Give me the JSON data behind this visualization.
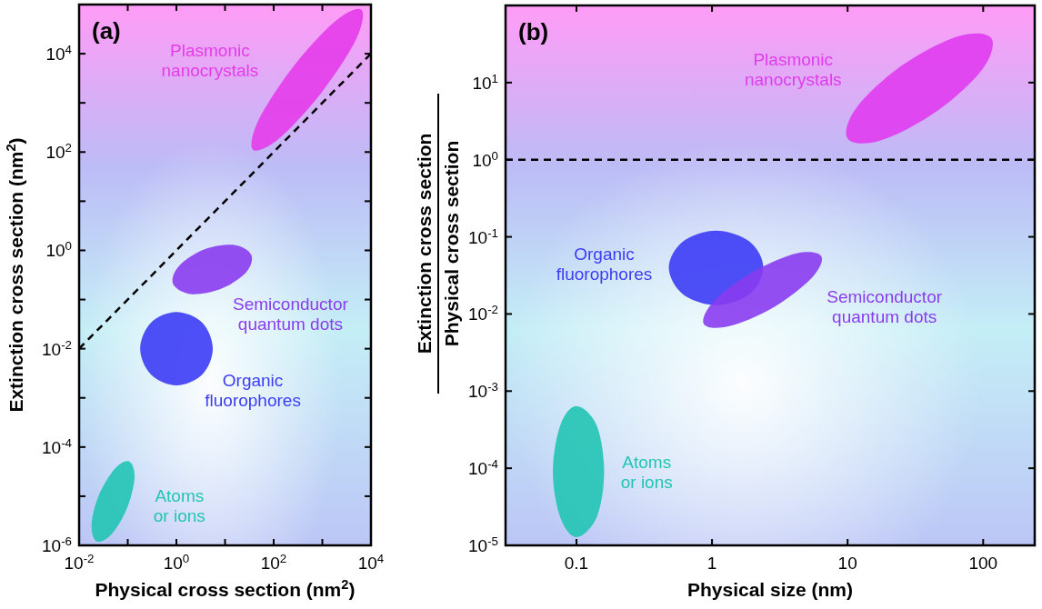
{
  "chart_data": [
    {
      "type": "line",
      "title": "(a)",
      "xlabel": "Physical cross section (nm$^{2}$)",
      "ylabel": "Extinction cross section (nm$^{2}$)",
      "log": "xy",
      "grid": false,
      "xlim": [
        0.01,
        10000
      ],
      "ylim": [
        1e-06,
        100000
      ],
      "xticks": [
        {
          "value": 0.01,
          "label": "10$^{-2}$"
        },
        {
          "value": 0.1,
          "label": null
        },
        {
          "value": 1,
          "label": "10$^{0}$"
        },
        {
          "value": 10,
          "label": null
        },
        {
          "value": 100,
          "label": "10$^{2}$"
        },
        {
          "value": 1000,
          "label": null
        },
        {
          "value": 10000,
          "label": "10$^{4}$"
        }
      ],
      "yticks": [
        {
          "value": 1e-06,
          "label": "10$^{-6}$"
        },
        {
          "value": 1e-05,
          "label": null
        },
        {
          "value": 0.0001,
          "label": "10$^{-4}$"
        },
        {
          "value": 0.001,
          "label": null
        },
        {
          "value": 0.01,
          "label": "10$^{-2}$"
        },
        {
          "value": 0.1,
          "label": null
        },
        {
          "value": 1,
          "label": "10$^{0}$"
        },
        {
          "value": 10,
          "label": null
        },
        {
          "value": 100,
          "label": "10$^{2}$"
        },
        {
          "value": 1000,
          "label": null
        },
        {
          "value": 10000,
          "label": "10$^{4}$"
        }
      ],
      "series": [
        {
          "type": "area",
          "name": "Plasmonic\nnanocrystals",
          "color": "#e43ceb",
          "x": [
            6300,
            5000,
            1000,
            135,
            38,
            48,
            240,
            1800
          ],
          "values": [
            79000,
            20000,
            1700,
            195,
            110,
            430,
            5100,
            45000
          ]
        },
        {
          "type": "area",
          "name": "Semiconductor\nquantum dots",
          "color": "#8a3cf0",
          "x": [
            35,
            26,
            7.6,
            1.9,
            0.85,
            1.15,
            3.8,
            16
          ],
          "values": [
            0.79,
            0.34,
            0.16,
            0.13,
            0.21,
            0.49,
            1.05,
            1.28
          ]
        },
        {
          "type": "area",
          "name": "Organic\nfluorophores",
          "color": "#3c3cf5",
          "x": [
            5.6,
            3.4,
            1,
            0.3,
            0.18,
            0.3,
            1,
            3.4
          ],
          "values": [
            0.01,
            0.034,
            0.056,
            0.034,
            0.01,
            0.003,
            0.0018,
            0.003
          ]
        },
        {
          "type": "area",
          "name": "Atoms\nor ions",
          "color": "#22c4b4",
          "x": [
            0.107,
            0.138,
            0.098,
            0.047,
            0.023,
            0.018,
            0.025,
            0.054
          ],
          "values": [
            5.1e-05,
            2.4e-05,
            5.9e-06,
            1.7e-06,
            1.2e-06,
            2.6e-06,
            1e-05,
            3.6e-05
          ]
        },
        {
          "type": "line",
          "color": "#000000",
          "line_style": "dashed",
          "x": [
            0.01,
            10000
          ],
          "values": [
            0.01,
            10000
          ]
        }
      ]
    },
    {
      "type": "line",
      "title": "(b)",
      "xlabel": "Physical size (nm)",
      "ylabel": "Extinction cross section\nPhysical cross section",
      "log": "xy",
      "grid": false,
      "xlim": [
        0.03,
        240
      ],
      "ylim": [
        1e-05,
        100
      ],
      "xticks": [
        0.1,
        1,
        10,
        100
      ],
      "yticks": [
        {
          "value": 1e-05,
          "label": "10$^{-5}$"
        },
        {
          "value": 0.0001,
          "label": "10$^{-4}$"
        },
        {
          "value": 0.001,
          "label": "10$^{-3}$"
        },
        {
          "value": 0.01,
          "label": "10$^{-2}$"
        },
        {
          "value": 0.1,
          "label": "10$^{-1}$"
        },
        {
          "value": 1,
          "label": "10$^{0}$"
        },
        {
          "value": 10,
          "label": "10$^{1}$"
        }
      ],
      "ref_lines": [
        {
          "axis": "y",
          "value": 1,
          "color": "#000000",
          "line_style": "dashed"
        }
      ],
      "series": [
        {
          "type": "area",
          "name": "Plasmonic\nnanocrystals",
          "color": "#e03cf0",
          "x": [
            115,
            98,
            45,
            17.5,
            10,
            11.7,
            25.6,
            66
          ],
          "values": [
            37.5,
            14.7,
            4.2,
            1.78,
            1.88,
            4.8,
            17,
            40
          ]
        },
        {
          "type": "area",
          "name": "Organic\nfluorophores",
          "color": "#3c3cf5",
          "x": [
            2.39,
            1.89,
            1.07,
            0.61,
            0.48,
            0.61,
            1.07,
            1.89
          ],
          "values": [
            0.04,
            0.087,
            0.12,
            0.087,
            0.04,
            0.018,
            0.013,
            0.018
          ]
        },
        {
          "type": "area",
          "name": "Semiconductor\nquantum dots",
          "color": "#8a3cf0",
          "x": [
            6.4,
            5.4,
            2.8,
            1.32,
            0.87,
            1.03,
            2,
            4.2
          ],
          "values": [
            0.056,
            0.029,
            0.012,
            0.0069,
            0.0074,
            0.0146,
            0.035,
            0.061
          ]
        },
        {
          "type": "area",
          "name": "Atoms\nor ions",
          "color": "#22c4b4",
          "x": [
            0.16,
            0.141,
            0.1,
            0.076,
            0.067,
            0.076,
            0.1,
            0.141
          ],
          "values": [
            9e-05,
            0.00036,
            0.00064,
            0.00036,
            9e-05,
            2.3e-05,
            1.28e-05,
            2.3e-05
          ]
        }
      ]
    }
  ]
}
